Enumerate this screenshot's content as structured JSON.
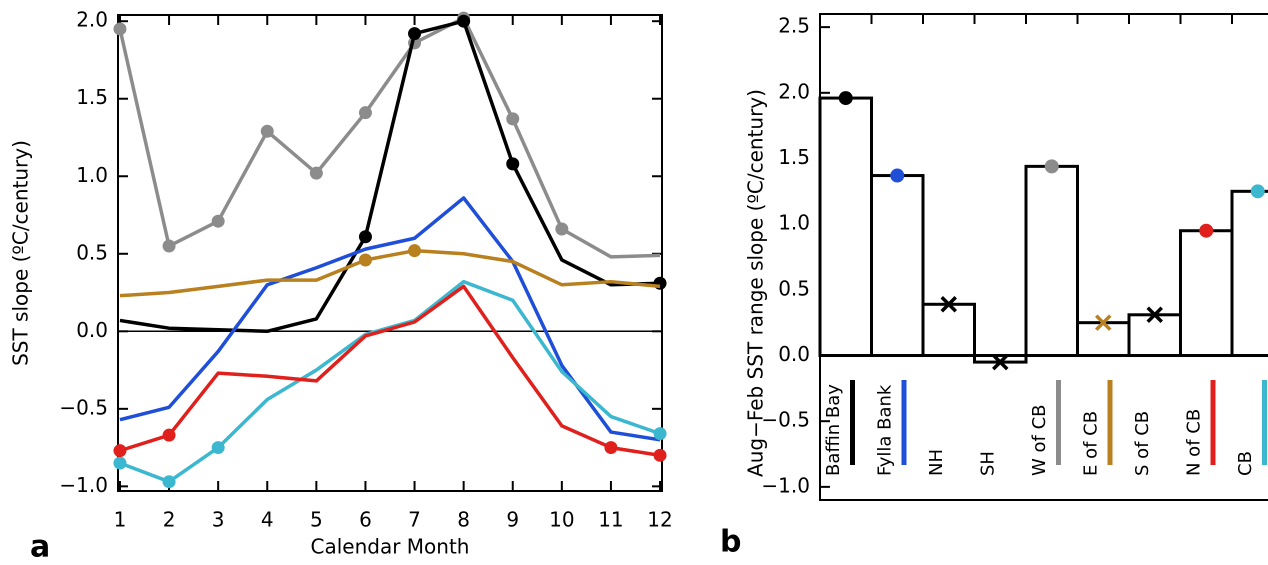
{
  "chart_data": [
    {
      "type": "line",
      "panel": "a",
      "ylabel": "SST slope (ºC/century)",
      "xlabel": "Calendar Month",
      "x": [
        1,
        2,
        3,
        4,
        5,
        6,
        7,
        8,
        9,
        10,
        11,
        12
      ],
      "xlim": [
        0.96,
        12.04
      ],
      "xticks": [
        1,
        2,
        3,
        4,
        5,
        6,
        7,
        8,
        9,
        10,
        11,
        12
      ],
      "ylim": [
        -1.03,
        2.04
      ],
      "yticks": [
        {
          "value": -1,
          "label": "−1.0"
        },
        {
          "value": -0.5,
          "label": "−0.5"
        },
        {
          "value": 0,
          "label": "0.0"
        },
        0.5,
        {
          "value": 1,
          "label": "1.0"
        },
        1.5,
        {
          "value": 2,
          "label": "2.0"
        }
      ],
      "reference_line": 0,
      "series": [
        {
          "color": "#8c8c8c",
          "values": [
            1.95,
            0.55,
            0.71,
            1.29,
            1.02,
            1.41,
            1.86,
            2.02,
            1.37,
            0.66,
            0.48,
            0.49
          ],
          "markers": [
            1,
            2,
            3,
            4,
            5,
            6,
            7,
            8,
            9,
            10
          ]
        },
        {
          "color": "#000000",
          "values": [
            0.07,
            0.02,
            0.01,
            0.0,
            0.08,
            0.61,
            1.92,
            2.0,
            1.08,
            0.46,
            0.3,
            0.31
          ],
          "markers": [
            6,
            7,
            8,
            9,
            12
          ]
        },
        {
          "color": "#1f4fd8",
          "values": [
            -0.57,
            -0.49,
            -0.13,
            0.3,
            0.41,
            0.53,
            0.6,
            0.86,
            0.45,
            -0.22,
            -0.65,
            -0.7
          ],
          "markers": []
        },
        {
          "color": "#b8801e",
          "values": [
            0.23,
            0.25,
            0.29,
            0.33,
            0.33,
            0.46,
            0.52,
            0.5,
            0.45,
            0.3,
            0.32,
            0.29
          ],
          "markers": [
            6,
            7
          ]
        },
        {
          "color": "#3bb8d0",
          "values": [
            -0.85,
            -0.97,
            -0.75,
            -0.44,
            -0.25,
            -0.02,
            0.07,
            0.32,
            0.2,
            -0.26,
            -0.55,
            -0.66
          ],
          "markers": [
            1,
            2,
            3,
            12
          ]
        },
        {
          "color": "#e0201c",
          "values": [
            -0.77,
            -0.67,
            -0.27,
            -0.29,
            -0.32,
            -0.03,
            0.06,
            0.29,
            -0.17,
            -0.61,
            -0.75,
            -0.8
          ],
          "markers": [
            1,
            2,
            11,
            12
          ]
        }
      ]
    },
    {
      "type": "bar",
      "panel": "b",
      "ylabel": "Aug−Feb SST range slope (ºC/century)",
      "categories": [
        "Baffin Bay",
        "Fylla Bank",
        "NH",
        "SH",
        "W of CB",
        "E of CB",
        "S of CB",
        "N of CB",
        "CB"
      ],
      "values": [
        1.96,
        1.37,
        0.39,
        -0.05,
        1.44,
        0.25,
        0.31,
        0.95,
        1.25
      ],
      "colors": [
        "#000000",
        "#1f4fd8",
        "#000000",
        "#000000",
        "#8c8c8c",
        "#b8801e",
        "#000000",
        "#e0201c",
        "#3bb8d0"
      ],
      "markers": [
        "o",
        "o",
        "x",
        "x",
        "o",
        "x",
        "x",
        "o",
        "o"
      ],
      "label_bars": [
        true,
        true,
        false,
        false,
        true,
        true,
        false,
        true,
        true
      ],
      "ylim": [
        -1.1,
        2.6
      ],
      "yticks": [
        {
          "value": -1,
          "label": "−1.0"
        },
        {
          "value": -0.5,
          "label": "−0.5"
        },
        {
          "value": 0,
          "label": "0.0"
        },
        0.5,
        {
          "value": 1,
          "label": "1.0"
        },
        1.5,
        {
          "value": 2,
          "label": "2.0"
        },
        2.5
      ]
    }
  ]
}
